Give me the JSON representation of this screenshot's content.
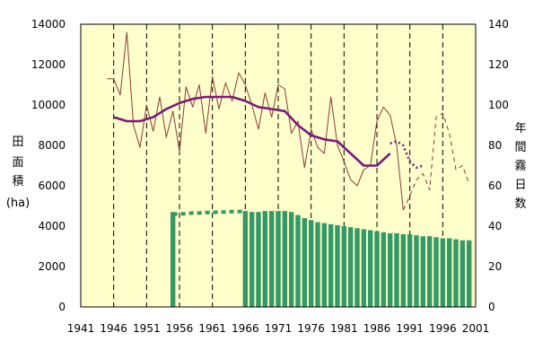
{
  "chart_data": {
    "type": "bar+line",
    "xlabel": "",
    "ylabel_left": [
      "田",
      "面",
      "積",
      "(ha)"
    ],
    "ylabel_right": [
      "年",
      "間",
      "霧",
      "日",
      "数"
    ],
    "xlim": [
      1941,
      2001
    ],
    "xticks": [
      1941,
      1946,
      1951,
      1956,
      1961,
      1966,
      1971,
      1976,
      1981,
      1986,
      1991,
      1996,
      2001
    ],
    "ylim_left": [
      0,
      14000
    ],
    "yticks_left": [
      0,
      2000,
      4000,
      6000,
      8000,
      10000,
      12000,
      14000
    ],
    "ylim_right": [
      0,
      140
    ],
    "yticks_right": [
      0,
      20,
      40,
      60,
      80,
      100,
      120,
      140
    ],
    "grid": "vertical dashed",
    "colors": {
      "plot_background": "#ffffcc",
      "bars": "#339966",
      "fog_line": "#8b3a3a",
      "fog_smoothed": "#7a1a7a",
      "grid": "#000000"
    },
    "series": [
      {
        "axis": "left",
        "type": "bar",
        "x": [
          1966,
          1967,
          1968,
          1969,
          1970,
          1971,
          1972,
          1973,
          1974,
          1975,
          1976,
          1977,
          1978,
          1979,
          1980,
          1981,
          1982,
          1983,
          1984,
          1985,
          1986,
          1987,
          1988,
          1989,
          1990,
          1991,
          1992,
          1993,
          1994,
          1995,
          1996,
          1997,
          1998,
          1999,
          2000
        ],
        "values": [
          4750,
          4700,
          4700,
          4750,
          4750,
          4750,
          4750,
          4700,
          4550,
          4400,
          4300,
          4200,
          4150,
          4100,
          4050,
          4000,
          3950,
          3900,
          3850,
          3800,
          3750,
          3700,
          3650,
          3650,
          3600,
          3600,
          3550,
          3500,
          3500,
          3450,
          3400,
          3400,
          3350,
          3300,
          3300
        ]
      },
      {
        "axis": "left",
        "type": "bar",
        "x": [
          1955
        ],
        "values": [
          4700
        ]
      },
      {
        "axis": "left",
        "type": "line-dotted",
        "x": [
          1955,
          1956,
          1957,
          1958,
          1959,
          1960,
          1961,
          1962,
          1963,
          1964,
          1965,
          1966
        ],
        "values": [
          4600,
          4600,
          4620,
          4650,
          4650,
          4680,
          4680,
          4700,
          4700,
          4720,
          4720,
          4750
        ]
      },
      {
        "axis": "right",
        "type": "line",
        "x": [
          1945,
          1946,
          1947,
          1948,
          1949,
          1950,
          1951,
          1952,
          1953,
          1954,
          1955,
          1956,
          1957,
          1958,
          1959,
          1960,
          1961,
          1962,
          1963,
          1964,
          1965,
          1966,
          1967,
          1968,
          1969,
          1970,
          1971,
          1972,
          1973,
          1974,
          1975,
          1976,
          1977,
          1978,
          1979,
          1980,
          1981,
          1982,
          1983,
          1984,
          1985,
          1986,
          1987,
          1988,
          1989,
          1990
        ],
        "values": [
          113,
          113,
          105,
          136,
          90,
          79,
          100,
          87,
          104,
          84,
          97,
          77,
          109,
          99,
          110,
          86,
          114,
          98,
          111,
          102,
          116,
          110,
          100,
          88,
          106,
          94,
          110,
          108,
          86,
          92,
          69,
          88,
          79,
          76,
          104,
          80,
          72,
          63,
          60,
          68,
          70,
          92,
          99,
          95,
          80,
          48
        ]
      },
      {
        "axis": "right",
        "type": "line-dashed",
        "x": [
          1990,
          1991,
          1992,
          1993,
          1994,
          1995,
          1996,
          1997,
          1998,
          1999,
          2000
        ],
        "values": [
          48,
          55,
          63,
          66,
          58,
          94,
          96,
          86,
          68,
          70,
          61
        ]
      },
      {
        "axis": "right",
        "type": "line-smoothed",
        "x": [
          1946,
          1948,
          1950,
          1952,
          1954,
          1956,
          1958,
          1960,
          1962,
          1964,
          1966,
          1968,
          1970,
          1972,
          1974,
          1976,
          1978,
          1980,
          1982,
          1984,
          1986,
          1988
        ],
        "values": [
          94,
          92,
          92,
          94,
          98,
          101,
          103,
          104,
          104,
          104,
          102,
          99,
          98,
          97,
          90,
          85,
          83,
          82,
          76,
          70,
          70,
          76
        ]
      },
      {
        "axis": "right",
        "type": "line-smoothed-dotted",
        "x": [
          1988,
          1989,
          1990,
          1991,
          1992,
          1993
        ],
        "values": [
          81,
          82,
          80,
          72,
          69,
          70
        ]
      }
    ]
  }
}
